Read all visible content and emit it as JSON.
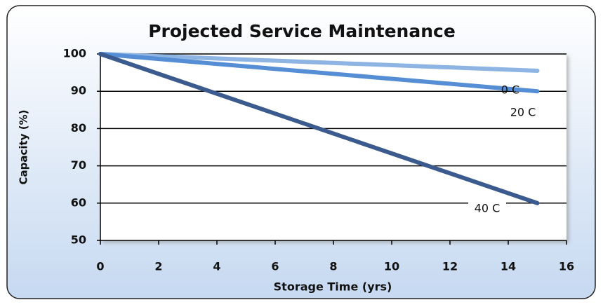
{
  "chart_data": {
    "type": "line",
    "title": "Projected Service Maintenance",
    "xlabel": "Storage Time (yrs)",
    "ylabel": "Capacity (%)",
    "x": [
      0,
      15
    ],
    "series": [
      {
        "name": "0 C",
        "color": "#8db4e2",
        "values": [
          100,
          95.5
        ]
      },
      {
        "name": "20 C",
        "color": "#558ed5",
        "values": [
          100,
          90
        ]
      },
      {
        "name": "40 C",
        "color": "#3b5b8e",
        "values": [
          100,
          60
        ]
      }
    ],
    "xlim": [
      0,
      16
    ],
    "xticks": [
      0,
      2,
      4,
      6,
      8,
      10,
      12,
      14,
      16
    ],
    "ylim": [
      50,
      100
    ],
    "yticks": [
      50,
      60,
      70,
      80,
      90,
      100
    ],
    "grid": true
  }
}
